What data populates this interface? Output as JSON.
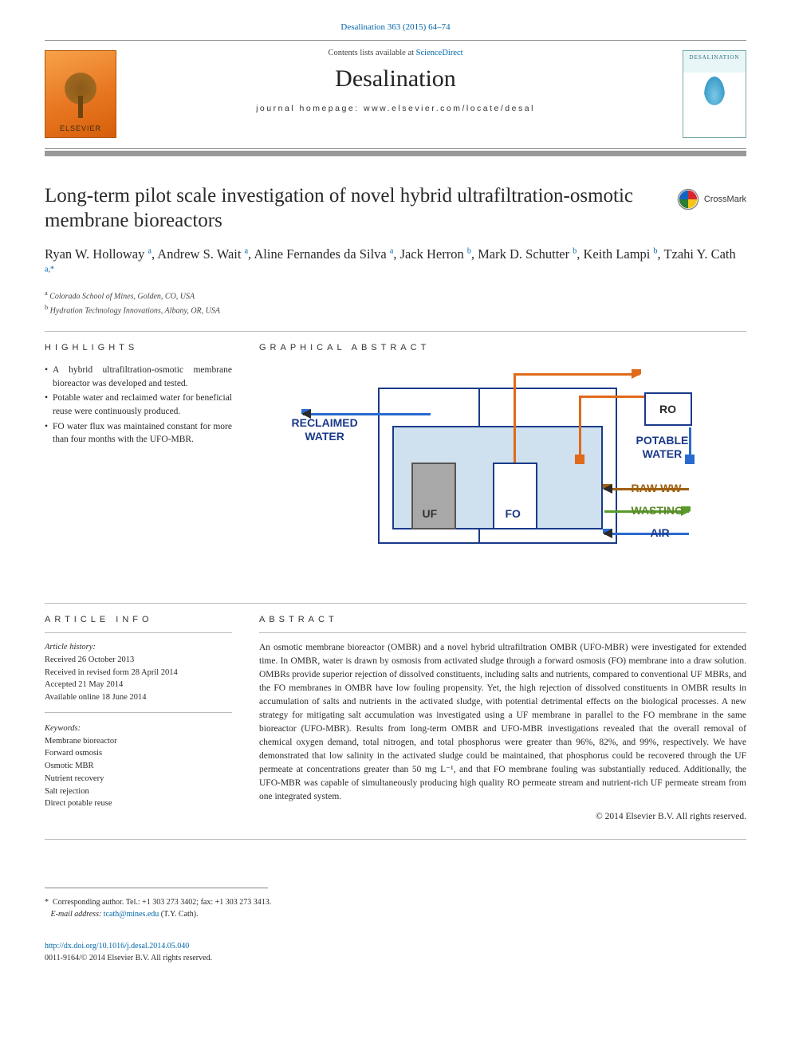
{
  "journal": {
    "citation_line": "Desalination 363 (2015) 64–74",
    "contents_prefix": "Contents lists available at ",
    "contents_link": "ScienceDirect",
    "name": "Desalination",
    "homepage_prefix": "journal homepage: ",
    "homepage_url": "www.elsevier.com/locate/desal",
    "publisher_logo_text": "ELSEVIER",
    "cover_label": "DESALINATION"
  },
  "colors": {
    "link": "#0066aa",
    "rule": "#999999",
    "text": "#2a2a2a",
    "elsevier_orange": "#e87722",
    "diagram_blue": "#1a3a8a",
    "diagram_fill": "#cfe0ee",
    "arrow_orange": "#e06a1a",
    "arrow_blue": "#2a6ad0",
    "arrow_brown": "#a06010",
    "arrow_green": "#5a9a2a"
  },
  "article": {
    "title": "Long-term pilot scale investigation of novel hybrid ultrafiltration-osmotic membrane bioreactors",
    "crossmark_label": "CrossMark",
    "authors_html": "Ryan W. Holloway <sup>a</sup>, Andrew S. Wait <sup>a</sup>, Aline Fernandes da Silva <sup>a</sup>, Jack Herron <sup>b</sup>, Mark D. Schutter <sup>b</sup>, Keith Lampi <sup>b</sup>, Tzahi Y. Cath <sup>a,*</sup>",
    "affiliations": [
      {
        "mark": "a",
        "text": "Colorado School of Mines, Golden, CO, USA"
      },
      {
        "mark": "b",
        "text": "Hydration Technology Innovations, Albany, OR, USA"
      }
    ]
  },
  "sections": {
    "highlights_label": "HIGHLIGHTS",
    "graphical_label": "GRAPHICAL ABSTRACT",
    "info_label": "ARTICLE INFO",
    "abstract_label": "ABSTRACT"
  },
  "highlights": [
    "A hybrid ultrafiltration-osmotic membrane bioreactor was developed and tested.",
    "Potable water and reclaimed water for beneficial reuse were continuously produced.",
    "FO water flux was maintained constant for more than four months with the UFO-MBR."
  ],
  "graphical_abstract": {
    "labels": {
      "reclaimed": "RECLAIMED\nWATER",
      "ro": "RO",
      "potable": "POTABLE\nWATER",
      "uf": "UF",
      "fo": "FO",
      "raw_ww": "RAW WW",
      "wasting": "WASTING",
      "air": "AIR"
    },
    "boxes": {
      "outer": {
        "border": "#1a3a8a",
        "fill": "#ffffff"
      },
      "inner": {
        "border": "#1a3a8a",
        "fill": "#cfe0ee"
      },
      "uf": {
        "border": "#555555",
        "fill": "#a8a8a8"
      },
      "fo": {
        "border": "#1a3a8a",
        "fill": "#ffffff"
      },
      "ro": {
        "border": "#1a3a8a",
        "fill": "#ffffff"
      }
    },
    "arrows": [
      {
        "name": "reclaimed-out",
        "color": "#2a6ad0",
        "dir": "left"
      },
      {
        "name": "uf-to-top",
        "color": "#e06a1a",
        "dir": "up"
      },
      {
        "name": "top-to-ro",
        "color": "#e06a1a",
        "dir": "right"
      },
      {
        "name": "ro-drain",
        "color": "#e06a1a",
        "dir": "down"
      },
      {
        "name": "potable-down",
        "color": "#2a6ad0",
        "dir": "down"
      },
      {
        "name": "rawww-in",
        "color": "#a06010",
        "dir": "left"
      },
      {
        "name": "wasting-out",
        "color": "#5a9a2a",
        "dir": "right"
      },
      {
        "name": "air-in",
        "color": "#2a6ad0",
        "dir": "left"
      }
    ]
  },
  "article_info": {
    "history_label": "Article history:",
    "history": [
      "Received 26 October 2013",
      "Received in revised form 28 April 2014",
      "Accepted 21 May 2014",
      "Available online 18 June 2014"
    ],
    "keywords_label": "Keywords:",
    "keywords": [
      "Membrane bioreactor",
      "Forward osmosis",
      "Osmotic MBR",
      "Nutrient recovery",
      "Salt rejection",
      "Direct potable reuse"
    ]
  },
  "abstract": "An osmotic membrane bioreactor (OMBR) and a novel hybrid ultrafiltration OMBR (UFO-MBR) were investigated for extended time. In OMBR, water is drawn by osmosis from activated sludge through a forward osmosis (FO) membrane into a draw solution. OMBRs provide superior rejection of dissolved constituents, including salts and nutrients, compared to conventional UF MBRs, and the FO membranes in OMBR have low fouling propensity. Yet, the high rejection of dissolved constituents in OMBR results in accumulation of salts and nutrients in the activated sludge, with potential detrimental effects on the biological processes. A new strategy for mitigating salt accumulation was investigated using a UF membrane in parallel to the FO membrane in the same bioreactor (UFO-MBR). Results from long-term OMBR and UFO-MBR investigations revealed that the overall removal of chemical oxygen demand, total nitrogen, and total phosphorus were greater than 96%, 82%, and 99%, respectively. We have demonstrated that low salinity in the activated sludge could be maintained, that phosphorus could be recovered through the UF permeate at concentrations greater than 50 mg L⁻¹, and that FO membrane fouling was substantially reduced. Additionally, the UFO-MBR was capable of simultaneously producing high quality RO permeate stream and nutrient-rich UF permeate stream from one integrated system.",
  "copyright": "© 2014 Elsevier B.V. All rights reserved.",
  "corresponding": {
    "mark": "*",
    "line": "Corresponding author. Tel.: +1 303 273 3402; fax: +1 303 273 3413.",
    "email_label": "E-mail address:",
    "email": "tcath@mines.edu",
    "email_suffix": "(T.Y. Cath)."
  },
  "footer": {
    "doi": "http://dx.doi.org/10.1016/j.desal.2014.05.040",
    "issn_line": "0011-9164/© 2014 Elsevier B.V. All rights reserved."
  }
}
